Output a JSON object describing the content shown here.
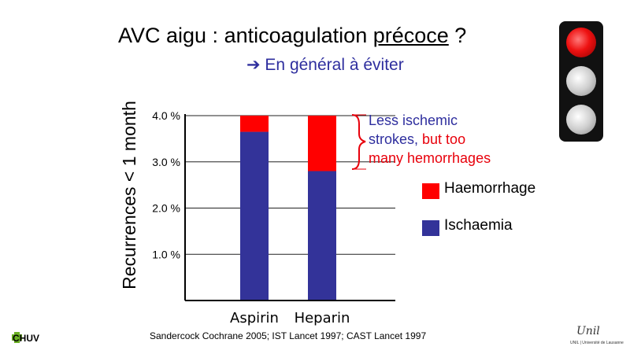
{
  "slide": {
    "title_main": "AVC aigu : anticoagulation ",
    "title_underlined": "précoce",
    "title_end": " ?",
    "subtitle": "➔ En général à éviter",
    "citation": "Sandercock Cochrane 2005; IST Lancet 1997; CAST Lancet 1997"
  },
  "annotation": {
    "line1": "Less ischemic",
    "line2_a": "strokes, ",
    "line2_b": "but too",
    "line3": "many hemorrhages"
  },
  "logos": {
    "chuv": "CHUV",
    "unil": "Unil",
    "unil_sub": "UNIL | Université de Lausanne"
  },
  "colors": {
    "haemorrhage": "#ff0000",
    "ischaemia": "#333399",
    "annotation_blue": "#2e2e9e",
    "annotation_red": "#e8000b"
  },
  "chart_data": {
    "type": "bar",
    "stacked": true,
    "categories": [
      "Aspirin",
      "Heparin"
    ],
    "series": [
      {
        "name": "Ischaemia",
        "values": [
          3.65,
          2.8
        ],
        "color": "#333399"
      },
      {
        "name": "Haemorrhage",
        "values": [
          0.35,
          1.2
        ],
        "color": "#ff0000"
      }
    ],
    "ylabel": "Recurrences < 1 month",
    "ylim": [
      0,
      4.0
    ],
    "yticks": [
      1.0,
      2.0,
      3.0,
      4.0
    ],
    "ytick_labels": [
      "1.0 %",
      "2.0 %",
      "3.0 %",
      "4.0 %"
    ],
    "grid": true,
    "legend_position": "right"
  }
}
